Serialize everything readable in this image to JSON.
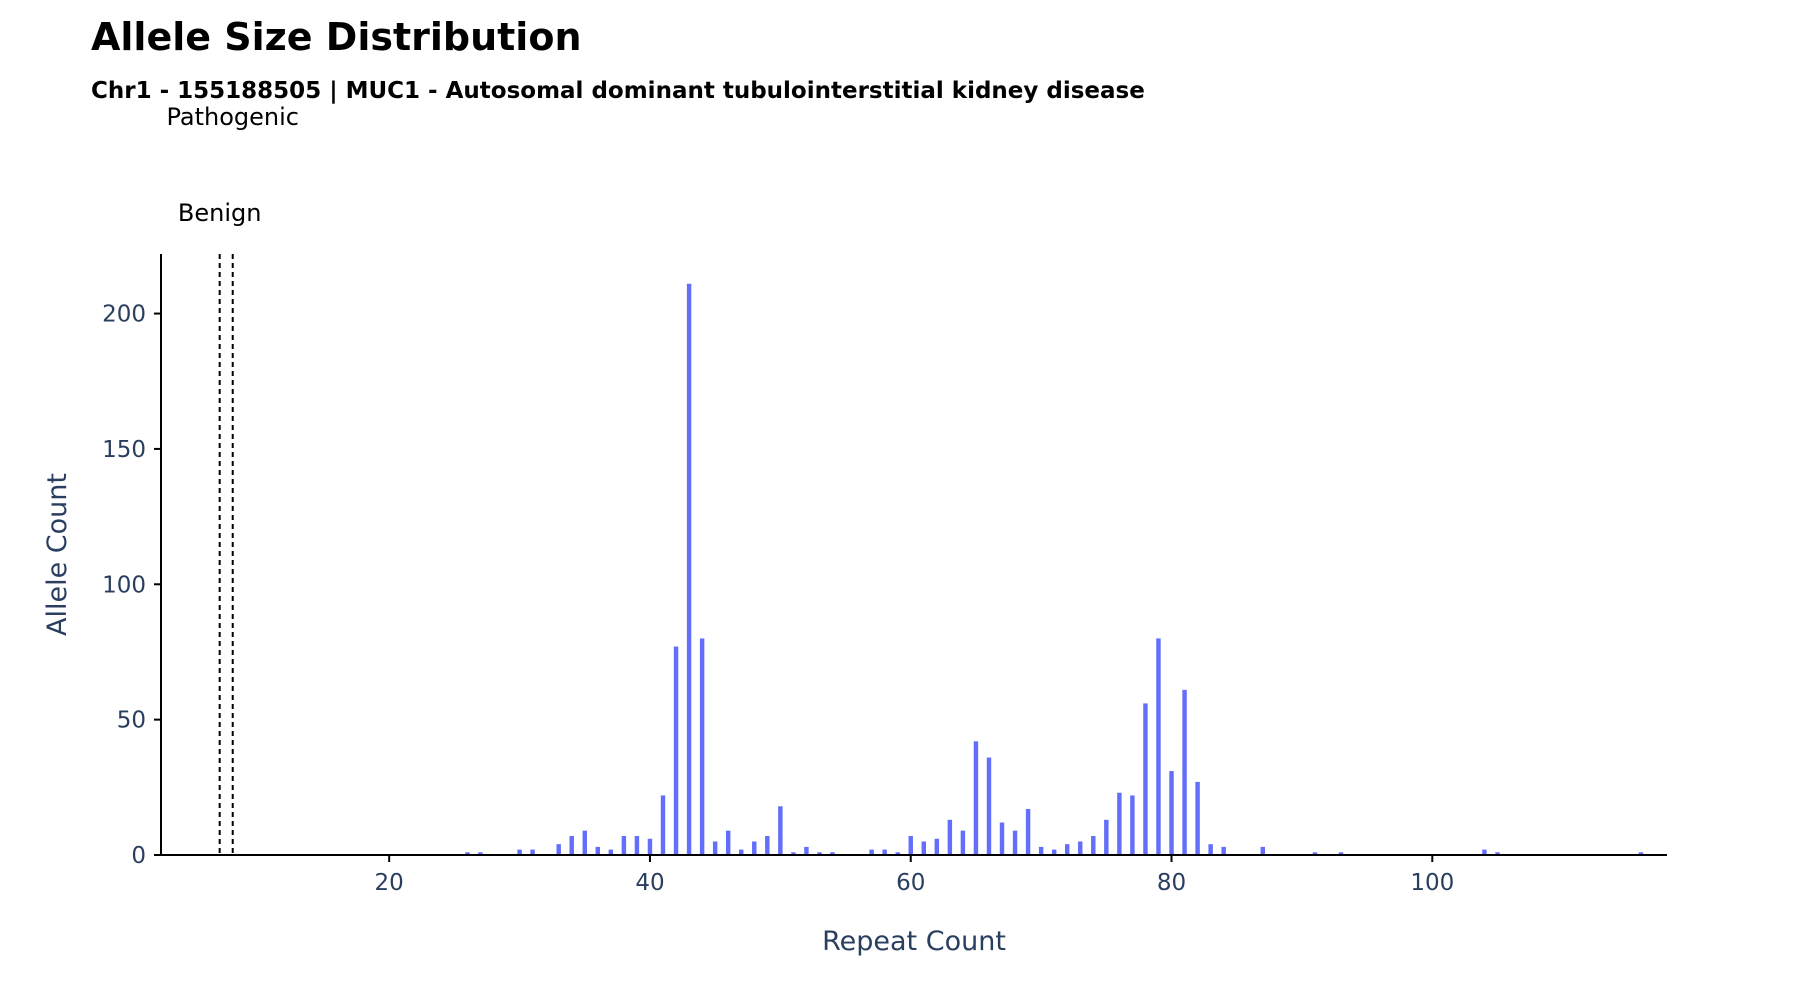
{
  "chart_data": {
    "type": "bar",
    "title": "Allele Size Distribution",
    "subtitle": "Chr1 - 155188505 | MUC1 - Autosomal dominant tubulointerstitial kidney disease",
    "xlabel": "Repeat Count",
    "ylabel": "Allele Count",
    "xlim": [
      2.5,
      118
    ],
    "ylim": [
      0,
      222
    ],
    "xticks": [
      20,
      40,
      60,
      80,
      100
    ],
    "yticks": [
      0,
      50,
      100,
      150,
      200
    ],
    "bar_color": "#636efa",
    "threshold_lines": [
      {
        "label": "Benign",
        "x": 7
      },
      {
        "label": "Pathogenic",
        "x": 8
      }
    ],
    "x": [
      26,
      27,
      30,
      31,
      33,
      34,
      35,
      36,
      37,
      38,
      39,
      40,
      41,
      42,
      43,
      44,
      45,
      46,
      47,
      48,
      49,
      50,
      51,
      52,
      53,
      54,
      57,
      58,
      59,
      60,
      61,
      62,
      63,
      64,
      65,
      66,
      67,
      68,
      69,
      70,
      71,
      72,
      73,
      74,
      75,
      76,
      77,
      78,
      79,
      80,
      81,
      82,
      83,
      84,
      87,
      91,
      93,
      104,
      105,
      116
    ],
    "values": [
      1,
      1,
      2,
      2,
      4,
      7,
      9,
      3,
      2,
      7,
      7,
      6,
      22,
      77,
      211,
      80,
      5,
      9,
      2,
      5,
      7,
      18,
      1,
      3,
      1,
      1,
      2,
      2,
      1,
      7,
      5,
      6,
      13,
      9,
      42,
      36,
      12,
      9,
      17,
      3,
      2,
      4,
      5,
      7,
      13,
      23,
      22,
      56,
      80,
      31,
      61,
      27,
      4,
      3,
      3,
      1,
      1,
      2,
      1,
      1
    ],
    "grid": false,
    "legend": "none"
  }
}
